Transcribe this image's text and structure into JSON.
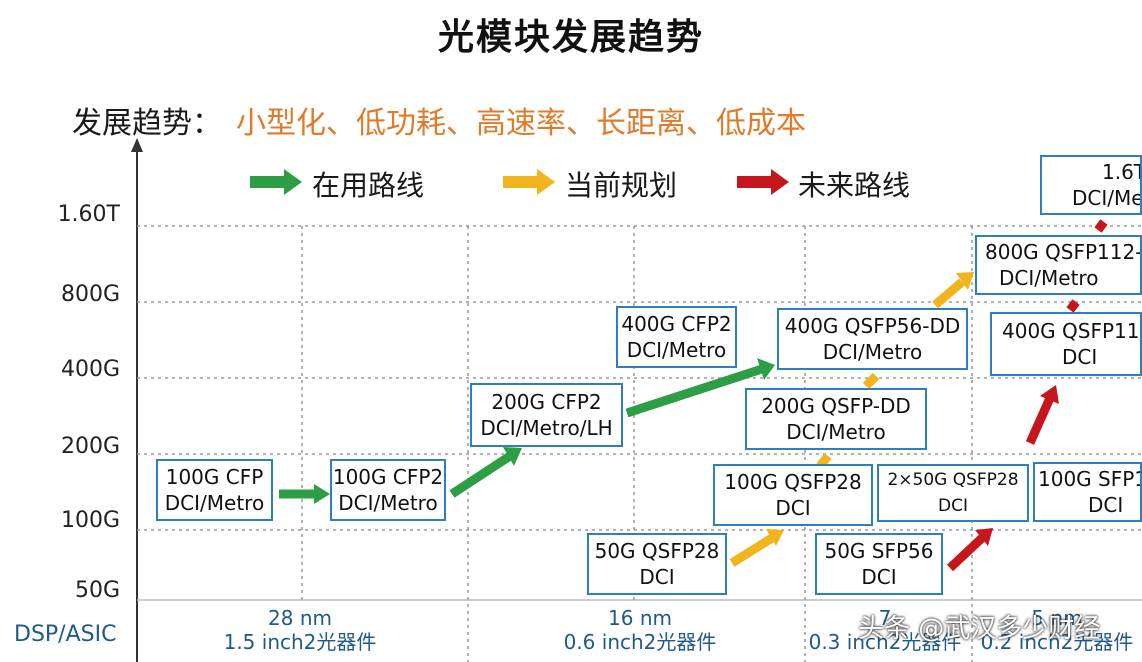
{
  "title": "光模块发展趋势",
  "trend": {
    "label": "发展趋势：",
    "value": "小型化、低功耗、高速率、长距离、低成本"
  },
  "legend": [
    {
      "label": "在用路线",
      "color": "#2e9e44"
    },
    {
      "label": "当前规划",
      "color": "#f2b41c"
    },
    {
      "label": "未来路线",
      "color": "#c4161c"
    }
  ],
  "y_axis": {
    "ticks": [
      "1.60T",
      "800G",
      "400G",
      "200G",
      "100G",
      "50G"
    ]
  },
  "x_axis": {
    "row_label": "DSP/ASIC",
    "columns": [
      {
        "nm": "28 nm",
        "size": "1.5 inch2光器件"
      },
      {
        "nm": "16 nm",
        "size": "0.6 inch2光器件"
      },
      {
        "nm": "7",
        "size": "0.3 inch2光器件"
      },
      {
        "nm": "5 nm",
        "size": "0.2 inch2光器件"
      }
    ]
  },
  "modules": {
    "m100g_cfp": {
      "l1": "100G CFP",
      "l2": "DCI/Metro"
    },
    "m100g_cfp2": {
      "l1": "100G CFP2",
      "l2": "DCI/Metro"
    },
    "m200g_cfp2": {
      "l1": "200G CFP2",
      "l2": "DCI/Metro/LH"
    },
    "m400g_cfp2": {
      "l1": "400G CFP2",
      "l2": "DCI/Metro"
    },
    "m50g_qsfp28": {
      "l1": "50G QSFP28",
      "l2": "DCI"
    },
    "m100g_qsfp28": {
      "l1": "100G QSFP28",
      "l2": "DCI"
    },
    "m200g_qsfpdd": {
      "l1": "200G QSFP-DD",
      "l2": "DCI/Metro"
    },
    "m400g_qsfp56dd": {
      "l1": "400G QSFP56-DD",
      "l2": "DCI/Metro"
    },
    "m800g_qsfp112": {
      "l1": "800G QSFP112-",
      "l2": "DCI/Metro"
    },
    "m1_6t": {
      "l1": "1.6T",
      "l2": "DCI/Me"
    },
    "m50g_sfp56": {
      "l1": "50G SFP56",
      "l2": "DCI"
    },
    "m2x50g_qsfp28": {
      "l1": "2×50G QSFP28",
      "l2": "DCI"
    },
    "m100g_sfp1": {
      "l1": "100G SFP1",
      "l2": "DCI"
    },
    "m400g_qsfp11": {
      "l1": "400G QSFP11",
      "l2": "DCI"
    }
  },
  "watermark": "头条 @武汉多少财经"
}
